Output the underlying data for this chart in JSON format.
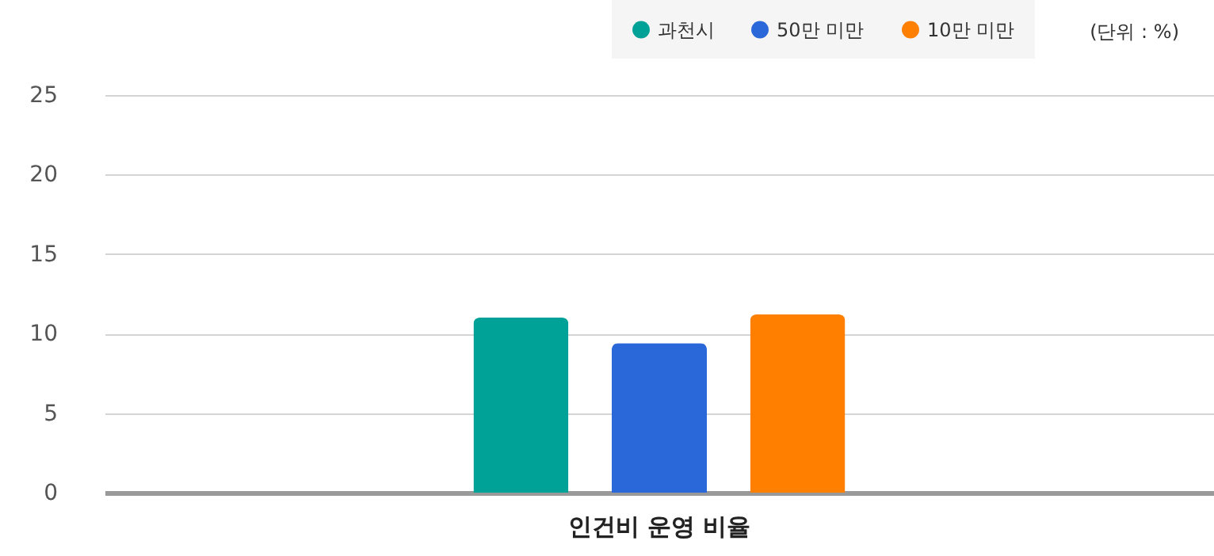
{
  "chart_data": {
    "type": "bar",
    "categories": [
      "인건비 운영 비율"
    ],
    "series": [
      {
        "name": "과천시",
        "color": "#00a196",
        "values": [
          11.0
        ]
      },
      {
        "name": "50만 미만",
        "color": "#2a67d8",
        "values": [
          9.4
        ]
      },
      {
        "name": "10만 미만",
        "color": "#ff7f00",
        "values": [
          11.2
        ]
      }
    ],
    "ylim": [
      0,
      25
    ],
    "yticks": [
      0,
      5,
      10,
      15,
      20,
      25
    ],
    "grid": "y",
    "legend": "top right",
    "annotations": [
      "(단위 : %)"
    ]
  }
}
